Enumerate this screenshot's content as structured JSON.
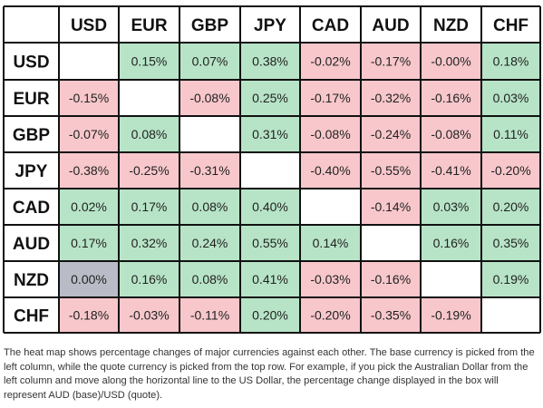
{
  "chart_data": {
    "type": "heatmap",
    "columns": [
      "USD",
      "EUR",
      "GBP",
      "JPY",
      "CAD",
      "AUD",
      "NZD",
      "CHF"
    ],
    "rows": [
      "USD",
      "EUR",
      "GBP",
      "JPY",
      "CAD",
      "AUD",
      "NZD",
      "CHF"
    ],
    "cells": [
      [
        null,
        "0.15%",
        "0.07%",
        "0.38%",
        "-0.02%",
        "-0.17%",
        "-0.00%",
        "0.18%"
      ],
      [
        "-0.15%",
        null,
        "-0.08%",
        "0.25%",
        "-0.17%",
        "-0.32%",
        "-0.16%",
        "0.03%"
      ],
      [
        "-0.07%",
        "0.08%",
        null,
        "0.31%",
        "-0.08%",
        "-0.24%",
        "-0.08%",
        "0.11%"
      ],
      [
        "-0.38%",
        "-0.25%",
        "-0.31%",
        null,
        "-0.40%",
        "-0.55%",
        "-0.41%",
        "-0.20%"
      ],
      [
        "0.02%",
        "0.17%",
        "0.08%",
        "0.40%",
        null,
        "-0.14%",
        "0.03%",
        "0.20%"
      ],
      [
        "0.17%",
        "0.32%",
        "0.24%",
        "0.55%",
        "0.14%",
        null,
        "0.16%",
        "0.35%"
      ],
      [
        "0.00%",
        "0.16%",
        "0.08%",
        "0.41%",
        "-0.03%",
        "-0.16%",
        null,
        "0.19%"
      ],
      [
        "-0.18%",
        "-0.03%",
        "-0.11%",
        "0.20%",
        "-0.20%",
        "-0.35%",
        "-0.19%",
        null
      ]
    ],
    "colors": {
      "positive": "#b7e4c7",
      "negative": "#f7c7cb",
      "neutral": "#b9bcc6",
      "empty": "#ffffff",
      "border": "#111111"
    }
  },
  "caption": "The heat map shows percentage changes of major currencies against each other. The base currency is picked from the left column, while the quote currency is picked from the top row. For example, if you pick the Australian Dollar from the left column and move along the horizontal line to the US Dollar, the percentage change displayed in the box will represent AUD (base)/USD (quote)."
}
